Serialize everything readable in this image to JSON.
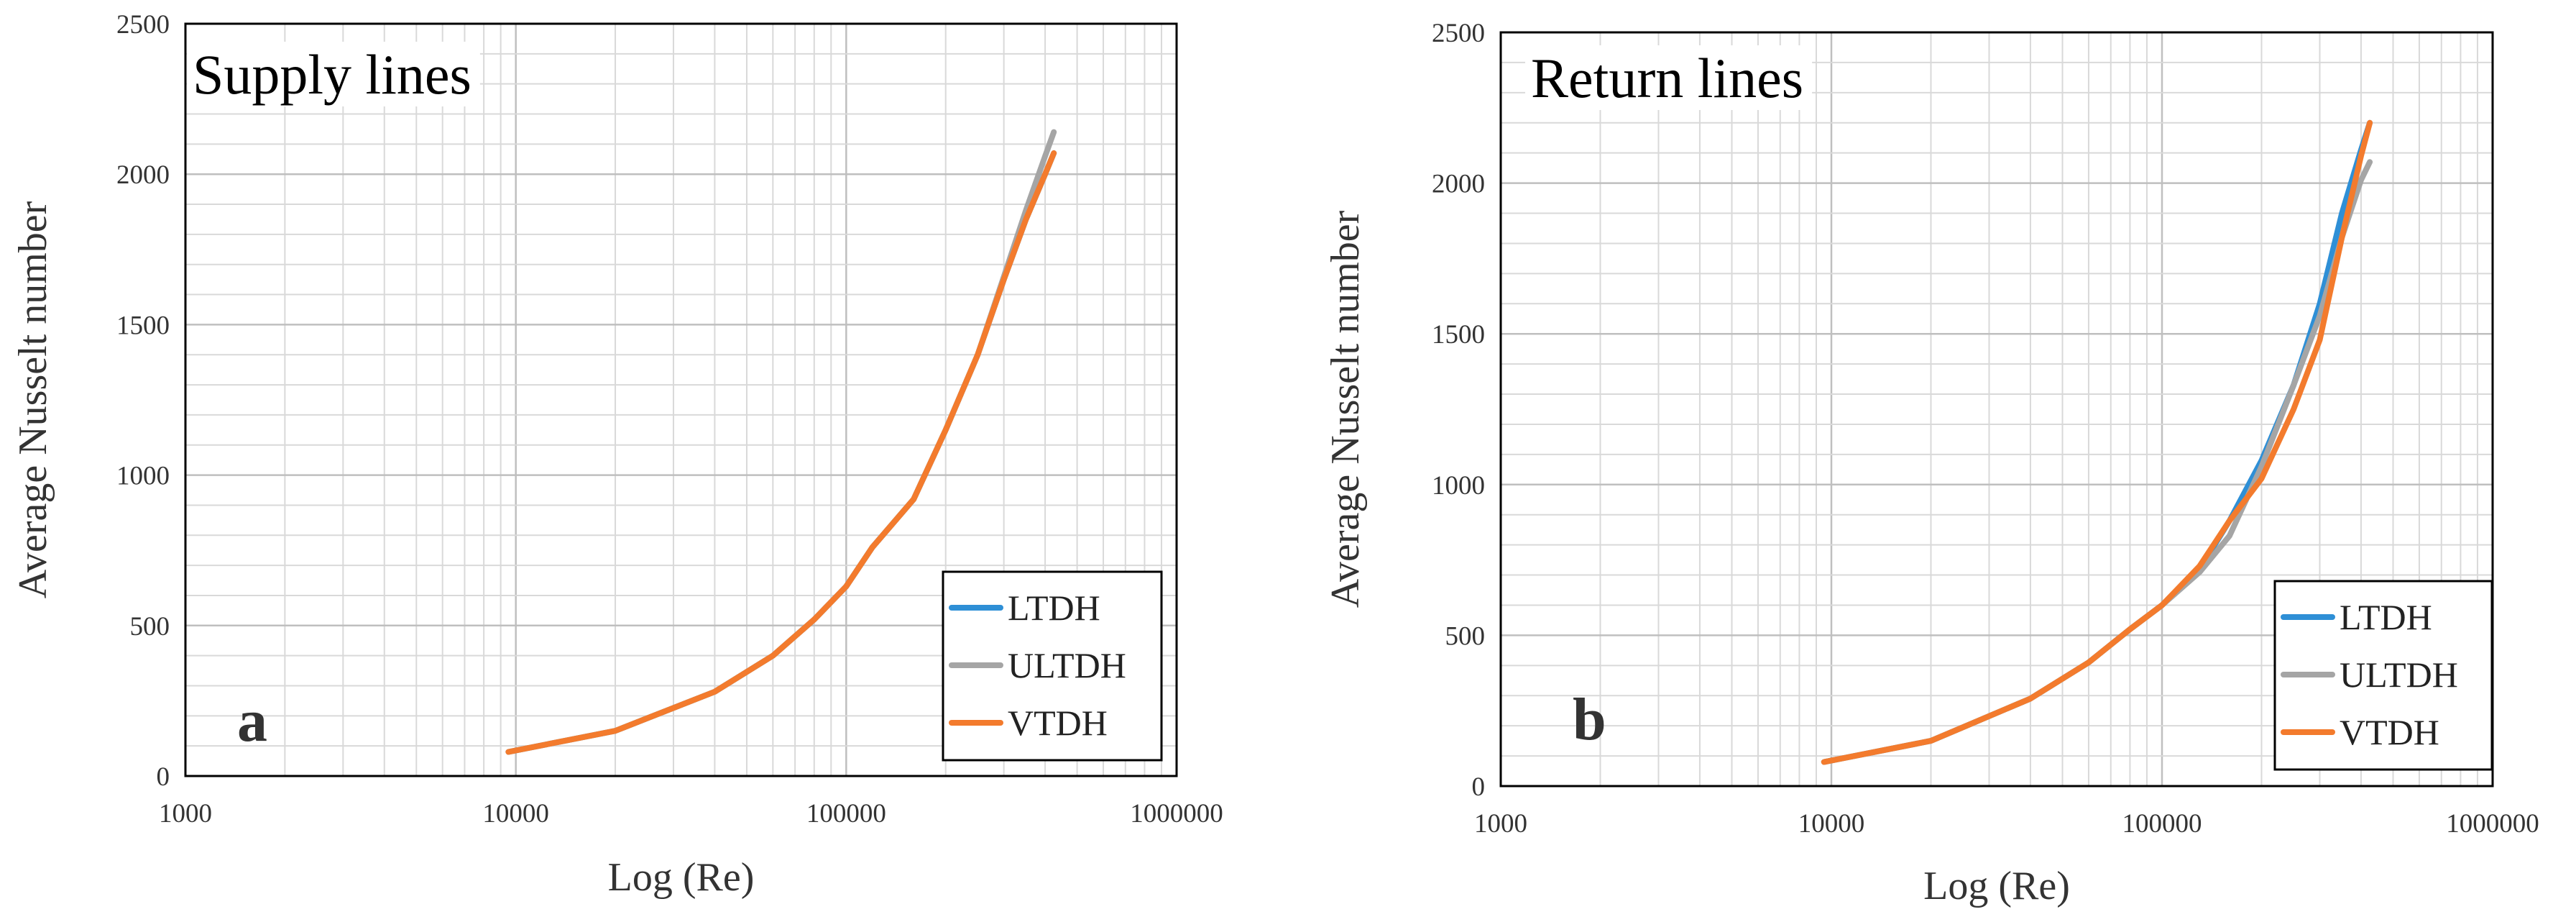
{
  "colors": {
    "LTDH": "#2e8fd6",
    "ULTDH": "#a5a5a5",
    "VTDH": "#f37b2d"
  },
  "chart_data": [
    {
      "type": "line",
      "title": "Supply lines",
      "panel_letter": "a",
      "xlabel": "Log (Re)",
      "ylabel": "Average Nusselt number",
      "xscale": "log",
      "xlim": [
        1000,
        1000000
      ],
      "ylim": [
        0,
        2500
      ],
      "x_ticks": [
        "1000",
        "10000",
        "100000",
        "1000000"
      ],
      "y_ticks": [
        "0",
        "500",
        "1000",
        "1500",
        "2000",
        "2500"
      ],
      "grid": true,
      "legend_position": "bottom-right",
      "series": [
        {
          "name": "LTDH",
          "x": [
            9500,
            20000,
            40000,
            60000,
            80000,
            100000,
            120000,
            160000,
            200000,
            250000,
            300000,
            350000,
            400000,
            425000
          ],
          "y": [
            80,
            150,
            280,
            400,
            520,
            630,
            760,
            920,
            1150,
            1400,
            1650,
            1850,
            2000,
            2070
          ]
        },
        {
          "name": "ULTDH",
          "x": [
            9500,
            20000,
            40000,
            60000,
            80000,
            100000,
            120000,
            160000,
            200000,
            250000,
            300000,
            350000,
            400000,
            425000
          ],
          "y": [
            80,
            150,
            280,
            400,
            520,
            630,
            760,
            920,
            1150,
            1400,
            1660,
            1880,
            2060,
            2140
          ]
        },
        {
          "name": "VTDH",
          "x": [
            9500,
            20000,
            40000,
            60000,
            80000,
            100000,
            120000,
            160000,
            200000,
            250000,
            300000,
            350000,
            400000,
            425000
          ],
          "y": [
            80,
            150,
            280,
            400,
            520,
            630,
            760,
            920,
            1150,
            1400,
            1650,
            1850,
            2000,
            2070
          ]
        }
      ]
    },
    {
      "type": "line",
      "title": "Return lines",
      "panel_letter": "b",
      "xlabel": "Log (Re)",
      "ylabel": "Average Nusselt number",
      "xscale": "log",
      "xlim": [
        1000,
        1000000
      ],
      "ylim": [
        0,
        2500
      ],
      "x_ticks": [
        "1000",
        "10000",
        "100000",
        "1000000"
      ],
      "y_ticks": [
        "0",
        "500",
        "1000",
        "1500",
        "2000",
        "2500"
      ],
      "grid": true,
      "legend_position": "bottom-right",
      "series": [
        {
          "name": "LTDH",
          "x": [
            9500,
            20000,
            40000,
            60000,
            80000,
            100000,
            130000,
            160000,
            200000,
            250000,
            300000,
            350000,
            400000,
            425000
          ],
          "y": [
            80,
            150,
            290,
            410,
            520,
            600,
            720,
            880,
            1080,
            1330,
            1600,
            1900,
            2110,
            2200
          ]
        },
        {
          "name": "ULTDH",
          "x": [
            9500,
            20000,
            40000,
            60000,
            80000,
            100000,
            130000,
            160000,
            200000,
            250000,
            300000,
            350000,
            400000,
            425000
          ],
          "y": [
            80,
            150,
            290,
            410,
            520,
            600,
            710,
            830,
            1060,
            1330,
            1560,
            1820,
            2010,
            2070
          ]
        },
        {
          "name": "VTDH",
          "x": [
            9500,
            20000,
            40000,
            60000,
            80000,
            100000,
            130000,
            160000,
            200000,
            250000,
            300000,
            350000,
            400000,
            425000
          ],
          "y": [
            80,
            150,
            290,
            410,
            520,
            600,
            730,
            880,
            1020,
            1250,
            1480,
            1820,
            2090,
            2200
          ]
        }
      ]
    }
  ]
}
